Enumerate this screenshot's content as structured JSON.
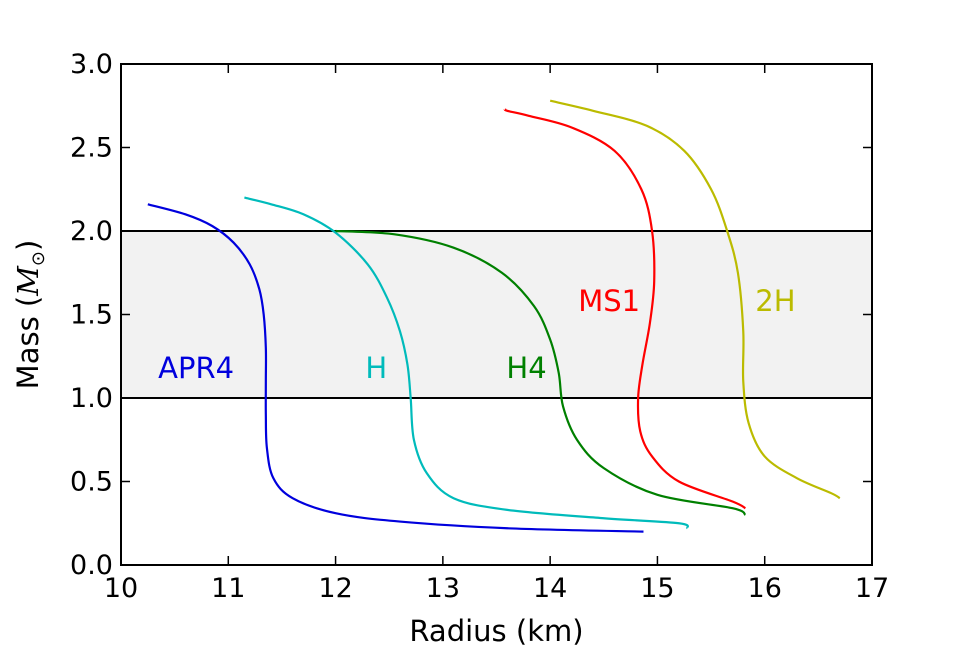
{
  "chart_data": {
    "type": "line",
    "title": "",
    "xlabel": "Radius (km)",
    "ylabel": "Mass (",
    "ylabel_symbol": "M",
    "ylabel_subscript": "⊙",
    "ylabel_close": ")",
    "xlim": [
      10,
      17
    ],
    "ylim": [
      0.0,
      3.0
    ],
    "xticks": [
      10,
      11,
      12,
      13,
      14,
      15,
      16,
      17
    ],
    "xtick_labels": [
      "10",
      "11",
      "12",
      "13",
      "14",
      "15",
      "16",
      "17"
    ],
    "yticks": [
      0.0,
      0.5,
      1.0,
      1.5,
      2.0,
      2.5,
      3.0
    ],
    "ytick_labels": [
      "0.0",
      "0.5",
      "1.0",
      "1.5",
      "2.0",
      "2.5",
      "3.0"
    ],
    "band": {
      "y_from": 1.0,
      "y_to": 2.0,
      "color": "#f2f2f2",
      "line_color": "#000000"
    },
    "series": [
      {
        "name": "APR4",
        "color": "#0000dd",
        "label_pos": [
          10.7,
          1.12
        ],
        "points": [
          [
            14.87,
            0.2
          ],
          [
            13.6,
            0.22
          ],
          [
            12.6,
            0.26
          ],
          [
            12.0,
            0.31
          ],
          [
            11.6,
            0.4
          ],
          [
            11.42,
            0.52
          ],
          [
            11.36,
            0.7
          ],
          [
            11.35,
            0.9
          ],
          [
            11.35,
            1.1
          ],
          [
            11.35,
            1.3
          ],
          [
            11.33,
            1.5
          ],
          [
            11.29,
            1.65
          ],
          [
            11.2,
            1.8
          ],
          [
            11.05,
            1.93
          ],
          [
            10.85,
            2.03
          ],
          [
            10.6,
            2.1
          ],
          [
            10.25,
            2.16
          ]
        ]
      },
      {
        "name": "H",
        "color": "#00bbbb",
        "label_pos": [
          12.38,
          1.12
        ],
        "points": [
          [
            15.28,
            0.22
          ],
          [
            15.2,
            0.25
          ],
          [
            14.5,
            0.28
          ],
          [
            13.6,
            0.33
          ],
          [
            13.1,
            0.4
          ],
          [
            12.85,
            0.55
          ],
          [
            12.73,
            0.75
          ],
          [
            12.7,
            1.0
          ],
          [
            12.67,
            1.2
          ],
          [
            12.6,
            1.4
          ],
          [
            12.48,
            1.6
          ],
          [
            12.3,
            1.8
          ],
          [
            12.0,
            1.99
          ],
          [
            11.7,
            2.1
          ],
          [
            11.4,
            2.16
          ],
          [
            11.15,
            2.2
          ]
        ]
      },
      {
        "name": "H4",
        "color": "#008000",
        "label_pos": [
          13.78,
          1.12
        ],
        "points": [
          [
            15.82,
            0.3
          ],
          [
            15.7,
            0.34
          ],
          [
            15.0,
            0.42
          ],
          [
            14.5,
            0.58
          ],
          [
            14.25,
            0.75
          ],
          [
            14.12,
            0.95
          ],
          [
            14.08,
            1.15
          ],
          [
            14.0,
            1.35
          ],
          [
            13.85,
            1.55
          ],
          [
            13.55,
            1.75
          ],
          [
            13.1,
            1.9
          ],
          [
            12.55,
            1.98
          ],
          [
            12.0,
            2.0
          ]
        ]
      },
      {
        "name": "MS1",
        "color": "#ff0000",
        "label_pos": [
          14.55,
          1.52
        ],
        "points": [
          [
            15.82,
            0.34
          ],
          [
            15.7,
            0.38
          ],
          [
            15.2,
            0.5
          ],
          [
            14.95,
            0.65
          ],
          [
            14.84,
            0.8
          ],
          [
            14.82,
            1.0
          ],
          [
            14.86,
            1.2
          ],
          [
            14.93,
            1.45
          ],
          [
            14.97,
            1.7
          ],
          [
            14.95,
            2.0
          ],
          [
            14.85,
            2.25
          ],
          [
            14.6,
            2.48
          ],
          [
            14.2,
            2.62
          ],
          [
            13.8,
            2.69
          ],
          [
            13.6,
            2.72
          ],
          [
            13.58,
            2.73
          ]
        ]
      },
      {
        "name": "2H",
        "color": "#bbbb00",
        "label_pos": [
          16.1,
          1.52
        ],
        "points": [
          [
            16.7,
            0.4
          ],
          [
            16.62,
            0.43
          ],
          [
            16.3,
            0.52
          ],
          [
            16.0,
            0.65
          ],
          [
            15.85,
            0.85
          ],
          [
            15.8,
            1.1
          ],
          [
            15.8,
            1.4
          ],
          [
            15.75,
            1.75
          ],
          [
            15.65,
            2.0
          ],
          [
            15.5,
            2.25
          ],
          [
            15.25,
            2.48
          ],
          [
            14.9,
            2.63
          ],
          [
            14.4,
            2.72
          ],
          [
            14.0,
            2.78
          ]
        ]
      }
    ]
  }
}
